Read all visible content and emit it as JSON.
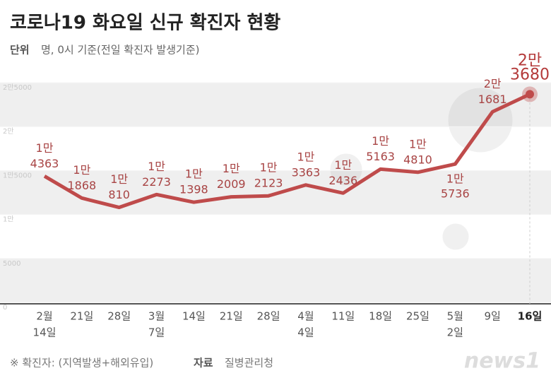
{
  "chart_data": {
    "type": "line",
    "title": "코로나19 화요일 신규 확진자 현황",
    "unit_label": "단위",
    "unit_text": "명, 0시 기준(전일 확진자 발생기준)",
    "categories": [
      [
        "2월",
        "14일"
      ],
      [
        "21일"
      ],
      [
        "28일"
      ],
      [
        "3월",
        "7일"
      ],
      [
        "14일"
      ],
      [
        "21일"
      ],
      [
        "28일"
      ],
      [
        "4월",
        "4일"
      ],
      [
        "11일"
      ],
      [
        "18일"
      ],
      [
        "25일"
      ],
      [
        "5월",
        "2일"
      ],
      [
        "9일"
      ],
      [
        "16일"
      ]
    ],
    "values": [
      14363,
      11868,
      10810,
      12273,
      11398,
      12009,
      12123,
      13363,
      12436,
      15163,
      14810,
      15736,
      21681,
      23680
    ],
    "value_labels": [
      [
        "1만",
        "4363"
      ],
      [
        "1만",
        "1868"
      ],
      [
        "1만",
        "810"
      ],
      [
        "1만",
        "2273"
      ],
      [
        "1만",
        "1398"
      ],
      [
        "1만",
        "2009"
      ],
      [
        "1만",
        "2123"
      ],
      [
        "1만",
        "3363"
      ],
      [
        "1만",
        "2436"
      ],
      [
        "1만",
        "5163"
      ],
      [
        "1만",
        "4810"
      ],
      [
        "1만",
        "5736"
      ],
      [
        "2만",
        "1681"
      ],
      [
        "2만",
        "3680"
      ]
    ],
    "color": "#bf4b4b",
    "ylim": [
      0,
      25000
    ],
    "yticks": [
      0,
      5000,
      {
        "value": 10000,
        "label": "1만"
      },
      {
        "value": 15000,
        "label": "1만5000"
      },
      {
        "value": 20000,
        "label": "2만"
      },
      {
        "value": 25000,
        "label": "2만5000"
      }
    ],
    "note": "※ 확진자: (지역발생+해외유입)",
    "source_label": "자료",
    "source": "질병관리청",
    "logo": "news1"
  }
}
